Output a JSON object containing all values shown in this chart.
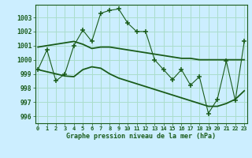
{
  "xlabel": "Graphe pression niveau de la mer (hPa)",
  "bg_color": "#cceeff",
  "grid_color": "#aaddcc",
  "line_color": "#1a5c1a",
  "hours": [
    0,
    1,
    2,
    3,
    4,
    5,
    6,
    7,
    8,
    9,
    10,
    11,
    12,
    13,
    14,
    15,
    16,
    17,
    18,
    19,
    20,
    21,
    22,
    23
  ],
  "pressure": [
    999.3,
    1000.7,
    998.5,
    999.0,
    1001.0,
    1002.1,
    1001.3,
    1003.3,
    1003.5,
    1003.6,
    1002.6,
    1002.0,
    1002.0,
    1000.0,
    999.3,
    998.6,
    999.3,
    998.2,
    998.8,
    996.2,
    997.2,
    999.9,
    997.1,
    1001.3
  ],
  "trend1_x": [
    0,
    4,
    5,
    6,
    7,
    8,
    9,
    10,
    11,
    12,
    13,
    14,
    15,
    16,
    17,
    18,
    19,
    20,
    21,
    22,
    23
  ],
  "trend1_y": [
    1000.9,
    1001.3,
    1001.1,
    1000.8,
    1000.9,
    1000.9,
    1000.8,
    1000.7,
    1000.6,
    1000.5,
    1000.4,
    1000.3,
    1000.2,
    1000.1,
    1000.1,
    1000.0,
    1000.0,
    1000.0,
    1000.0,
    1000.0,
    1000.0
  ],
  "trend2_x": [
    0,
    1,
    2,
    3,
    4,
    5,
    6,
    7,
    8,
    9,
    10,
    11,
    12,
    13,
    14,
    15,
    16,
    17,
    18,
    19,
    20,
    21,
    22,
    23
  ],
  "trend2_y": [
    999.3,
    999.15,
    999.0,
    998.85,
    998.8,
    999.3,
    999.5,
    999.4,
    999.0,
    998.7,
    998.5,
    998.3,
    998.1,
    997.9,
    997.7,
    997.5,
    997.3,
    997.1,
    996.9,
    996.7,
    996.7,
    996.9,
    997.2,
    997.8
  ],
  "ylim": [
    995.5,
    1003.9
  ],
  "yticks": [
    996,
    997,
    998,
    999,
    1000,
    1001,
    1002,
    1003
  ],
  "xlim": [
    -0.3,
    23.3
  ]
}
